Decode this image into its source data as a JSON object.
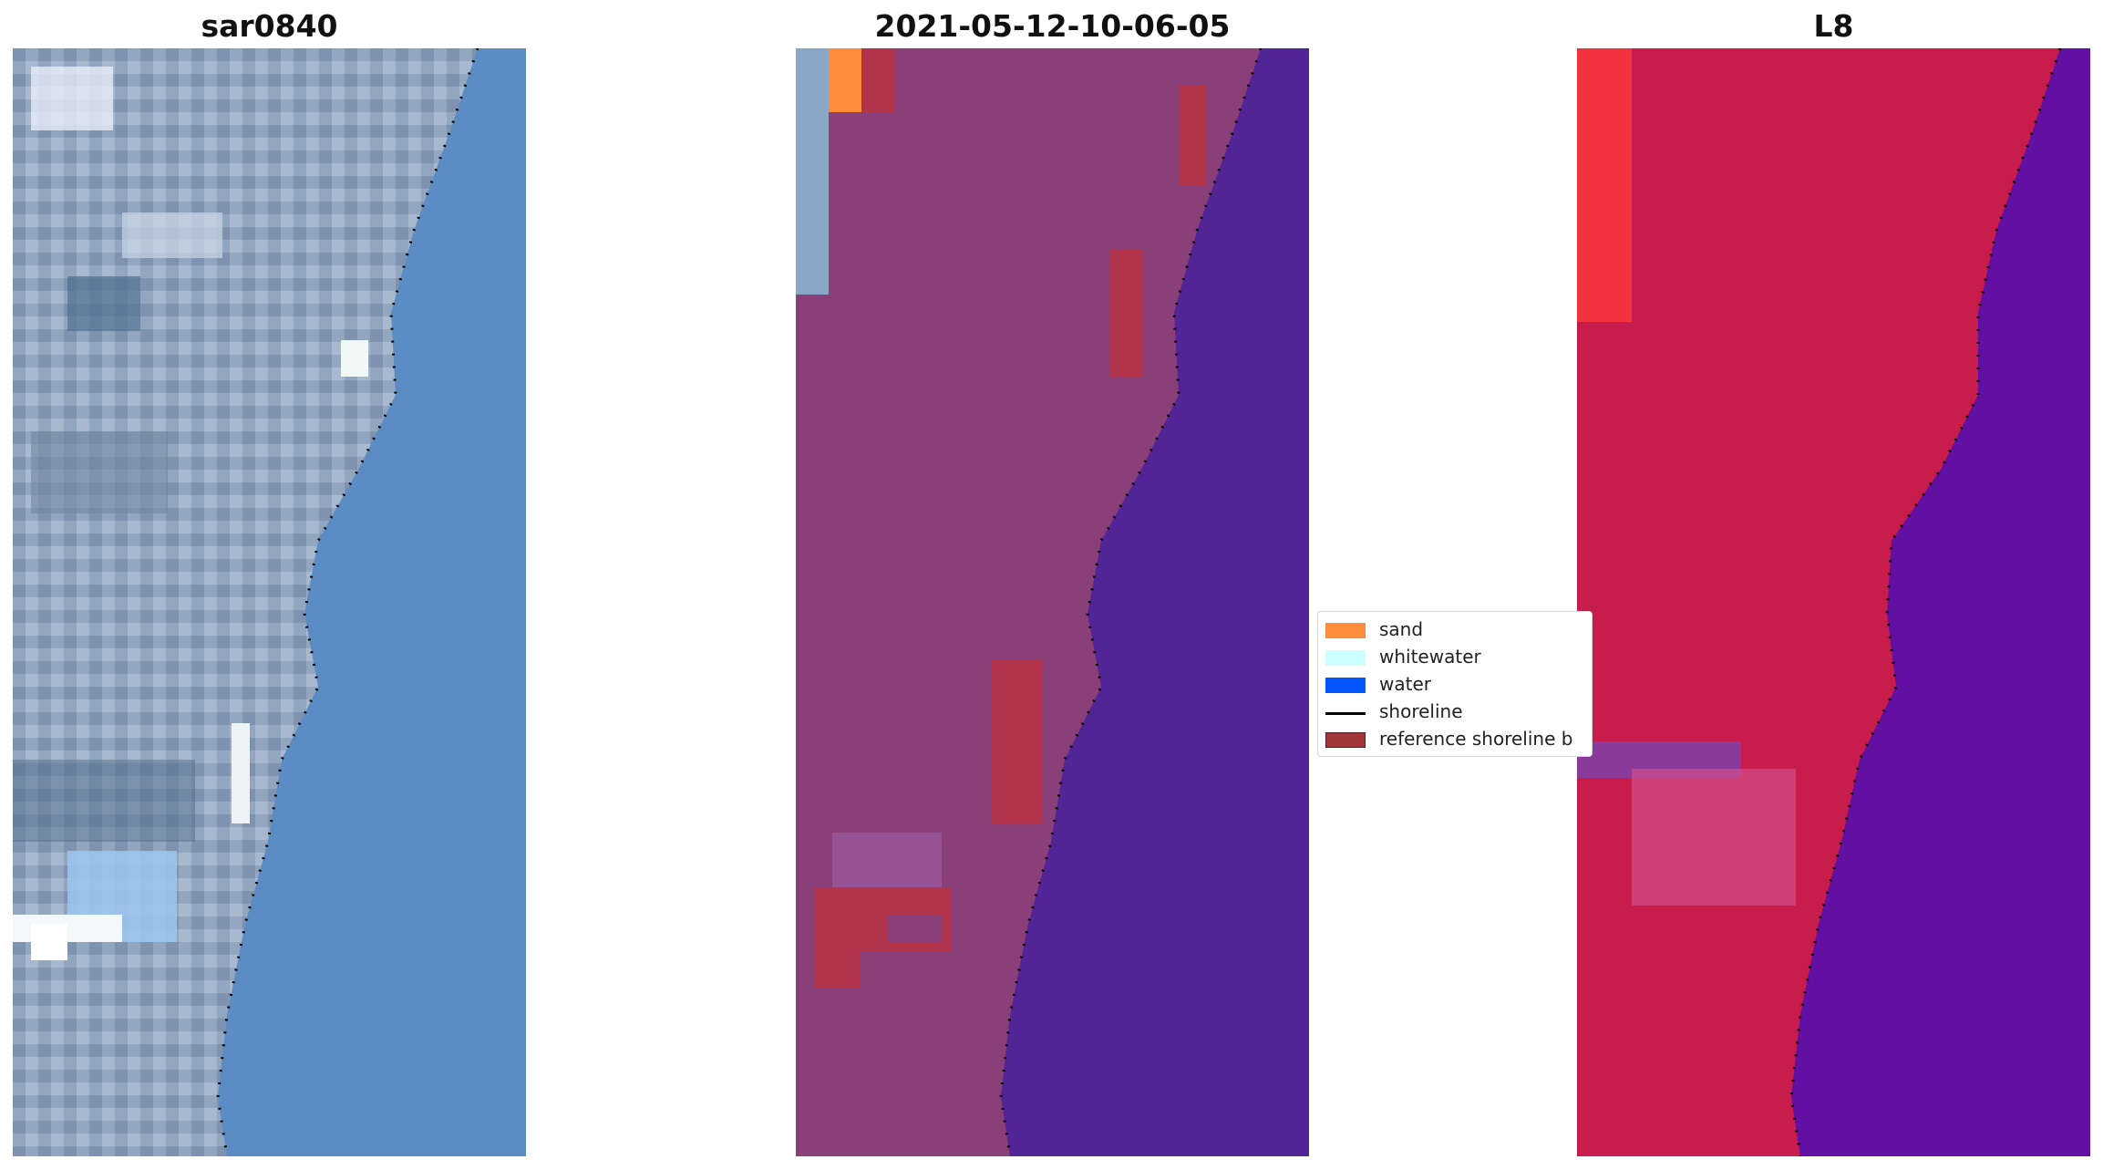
{
  "panels": [
    {
      "title": "sar0840",
      "image": "rgb satellite image"
    },
    {
      "title": "2021-05-12-10-06-05",
      "image": "classified image"
    },
    {
      "title": "L8",
      "image": "false color image"
    }
  ],
  "legend": {
    "items": [
      {
        "label": "sand",
        "color": "#ff8c3a"
      },
      {
        "label": "whitewater",
        "color": "#ccffff"
      },
      {
        "label": "water",
        "color": "#0057ff"
      },
      {
        "label": "shoreline",
        "color": "#000000"
      },
      {
        "label": "reference shoreline b",
        "color": "#a0353a"
      }
    ]
  },
  "colors": {
    "sea_rgb": "#5a8bc4",
    "land_rgb": "#8ea2bd",
    "land_classified": "#8a3f79",
    "water_classified": "#512596",
    "land_false_color": "#c81c4c",
    "water_false_color": "#6110a2"
  }
}
